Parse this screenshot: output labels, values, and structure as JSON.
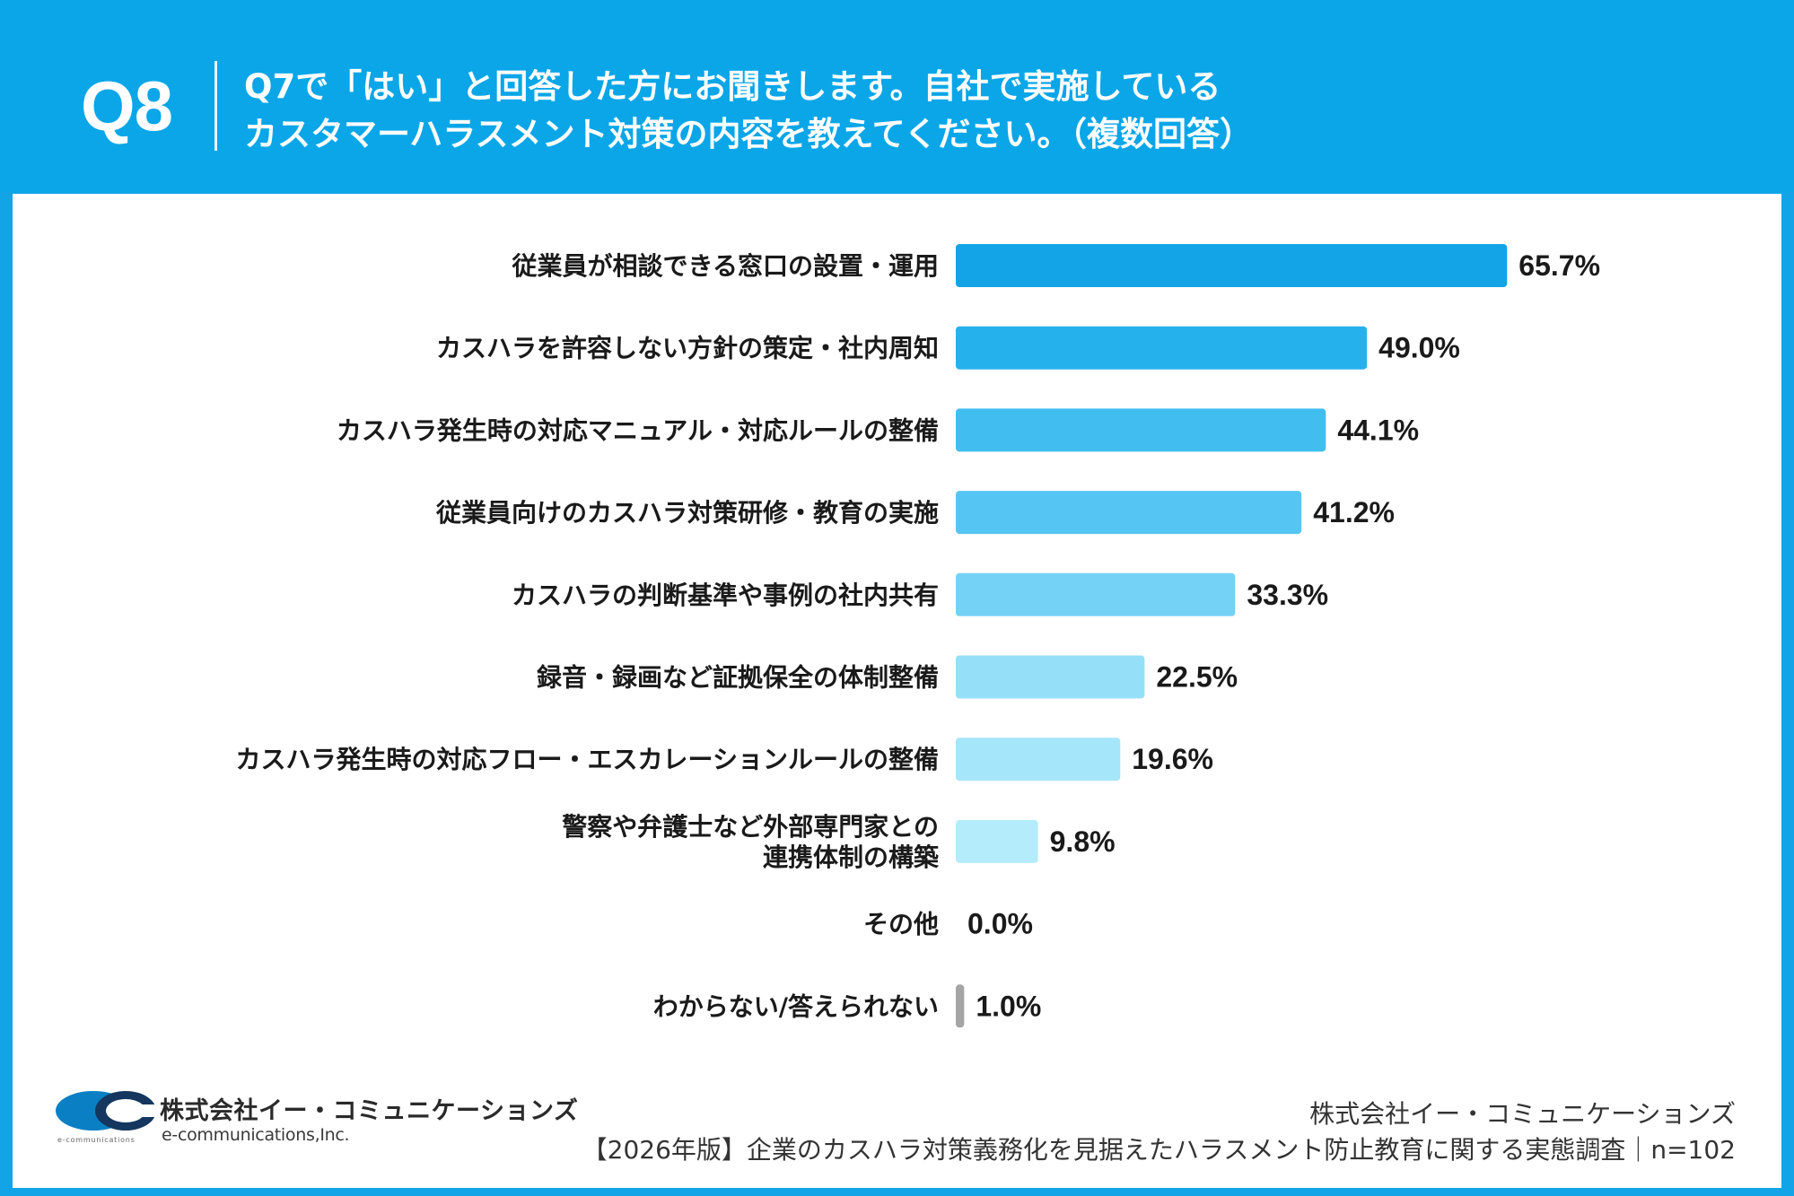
{
  "header": {
    "question_number": "Q8",
    "title_line1": "Q7で「はい」と回答した方にお聞きします。自社で実施している",
    "title_line2": "カスタマーハラスメント対策の内容を教えてください。（複数回答）"
  },
  "chart_data": {
    "type": "bar",
    "orientation": "horizontal",
    "categories": [
      [
        "従業員が相談できる窓口の設置・運用"
      ],
      [
        "カスハラを許容しない方針の策定・社内周知"
      ],
      [
        "カスハラ発生時の対応マニュアル・対応ルールの整備"
      ],
      [
        "従業員向けのカスハラ対策研修・教育の実施"
      ],
      [
        "カスハラの判断基準や事例の社内共有"
      ],
      [
        "録音・録画など証拠保全の体制整備"
      ],
      [
        "カスハラ発生時の対応フロー・エスカレーションルールの整備"
      ],
      [
        "警察や弁護士など外部専門家との",
        "連携体制の構築"
      ],
      [
        "その他"
      ],
      [
        "わからない/答えられない"
      ]
    ],
    "values": [
      65.7,
      49.0,
      44.1,
      41.2,
      33.3,
      22.5,
      19.6,
      9.8,
      0.0,
      1.0
    ],
    "value_labels": [
      "65.7%",
      "49.0%",
      "44.1%",
      "41.2%",
      "33.3%",
      "22.5%",
      "19.6%",
      "9.8%",
      "0.0%",
      "1.0%"
    ],
    "bar_colors": [
      "#12a4e6",
      "#25b1ec",
      "#41bdf0",
      "#55c6f3",
      "#74d2f6",
      "#95dff8",
      "#a6e6fa",
      "#b5ecfb",
      "#c5effb",
      "#a5a5a5"
    ],
    "xlim": [
      0,
      100
    ],
    "grid": false,
    "legend": "none"
  },
  "footer": {
    "logo_jp": "株式会社イー・コミュニケーションズ",
    "logo_en": "e-communications,Inc.",
    "logo_tiny": "e-communications",
    "company": "株式会社イー・コミュニケーションズ",
    "survey": "【2026年版】企業のカスハラ対策義務化を見据えたハラスメント防止教育に関する実態調査｜n=102"
  }
}
